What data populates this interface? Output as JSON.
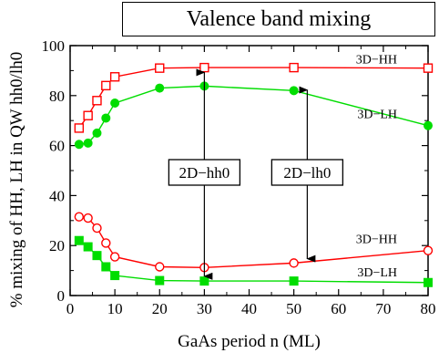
{
  "header": {
    "title": "Valence band mixing"
  },
  "chart_data": {
    "type": "line",
    "title": "Valence band mixing",
    "xlabel": "GaAs period n (ML)",
    "ylabel": "% mixing of HH, LH in QW hh0/lh0",
    "xlim": [
      0,
      80
    ],
    "ylim": [
      0,
      100
    ],
    "x_ticks": [
      0,
      10,
      20,
      30,
      40,
      50,
      60,
      70,
      80
    ],
    "y_ticks": [
      0,
      20,
      40,
      60,
      80,
      100
    ],
    "grid": false,
    "series": [
      {
        "group": "hh0",
        "name": "3D−HH",
        "color": "#ff0000",
        "marker": "open-square",
        "x": [
          2,
          4,
          6,
          8,
          10,
          20,
          30,
          50,
          80
        ],
        "y": [
          67,
          72,
          78,
          84,
          87.5,
          91,
          91.2,
          91.2,
          91
        ]
      },
      {
        "group": "lh0",
        "name": "3D−LH",
        "color": "#00dd00",
        "marker": "filled-circle",
        "x": [
          2,
          4,
          6,
          8,
          10,
          20,
          30,
          50,
          80
        ],
        "y": [
          60.5,
          61,
          65,
          71,
          77,
          83,
          83.8,
          82,
          68
        ]
      },
      {
        "group": "lh0",
        "name": "3D−HH",
        "color": "#ff0000",
        "marker": "open-circle",
        "x": [
          2,
          4,
          6,
          8,
          10,
          20,
          30,
          50,
          80
        ],
        "y": [
          31.5,
          31,
          27,
          21,
          15.5,
          11.5,
          11.2,
          13,
          18
        ]
      },
      {
        "group": "hh0",
        "name": "3D−LH",
        "color": "#00dd00",
        "marker": "filled-square",
        "x": [
          2,
          4,
          6,
          8,
          10,
          20,
          30,
          50,
          80
        ],
        "y": [
          22,
          19.5,
          16,
          11.5,
          8,
          6,
          5.8,
          5.8,
          5.2
        ]
      }
    ],
    "annotations": [
      {
        "label": "2D−hh0",
        "x": 30,
        "y_top": 90,
        "y_bottom": 7
      },
      {
        "label": "2D−lh0",
        "x": 53,
        "y_top": 83,
        "y_bottom": 14
      }
    ]
  }
}
